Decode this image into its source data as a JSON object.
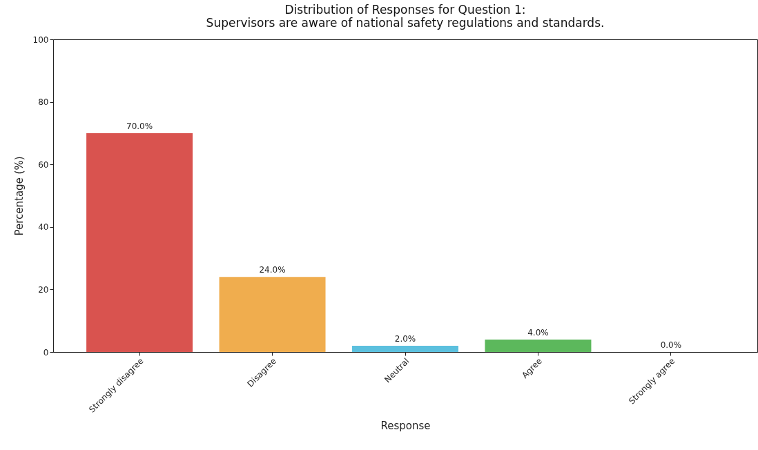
{
  "chart_data": {
    "type": "bar",
    "title": "Distribution of Responses for Question 1:\nSupervisors are aware of national safety regulations and standards.",
    "xlabel": "Response",
    "ylabel": "Percentage (%)",
    "categories": [
      "Strongly disagree",
      "Disagree",
      "Neutral",
      "Agree",
      "Strongly agree"
    ],
    "values": [
      70,
      24,
      2,
      4,
      0
    ],
    "colors": [
      "#d9534f",
      "#f0ad4e",
      "#5bc0de",
      "#5cb85c",
      "#428bca"
    ],
    "value_labels": [
      "70.0%",
      "24.0%",
      "2.0%",
      "4.0%",
      "0.0%"
    ],
    "ylim": [
      0,
      100
    ],
    "yticks": [
      0,
      20,
      40,
      60,
      80,
      100
    ],
    "grid": false
  }
}
